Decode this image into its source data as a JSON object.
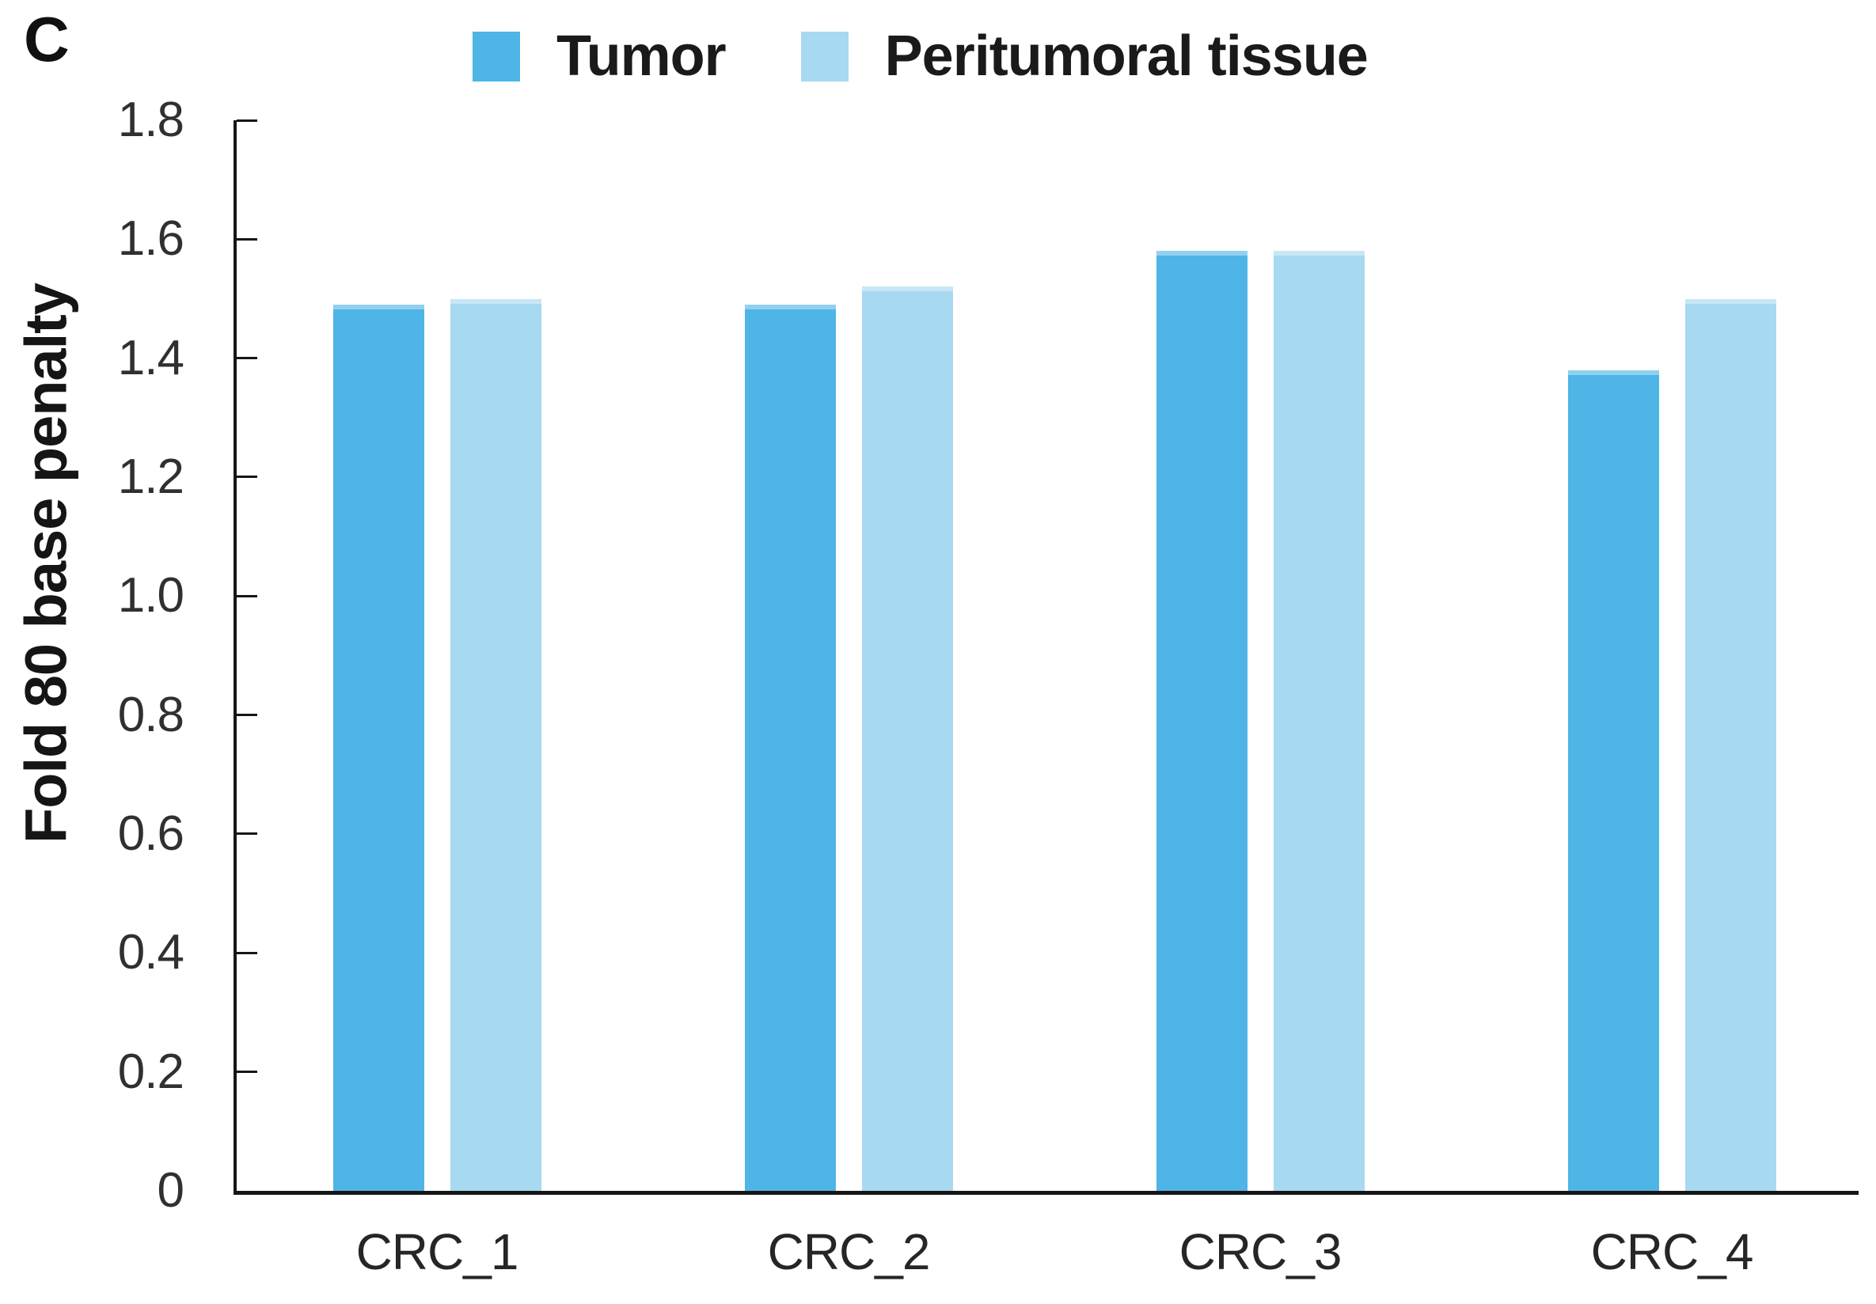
{
  "panel_label": "C",
  "colors": {
    "axis": "#161616",
    "tick_label_text": "#303030",
    "category_text": "#262626",
    "legend_text": "#1a1a1a",
    "tumor_blue": "#4FB4E6",
    "peritumoral_blue": "#A7D9F1"
  },
  "chart_data": {
    "type": "bar",
    "title": "",
    "categories": [
      "CRC_1",
      "CRC_2",
      "CRC_3",
      "CRC_4"
    ],
    "series": [
      {
        "name": "Tumor",
        "color": "#4FB4E6",
        "values": [
          1.49,
          1.49,
          1.58,
          1.38
        ]
      },
      {
        "name": "Peritumoral tissue",
        "color": "#A7D9F1",
        "values": [
          1.5,
          1.52,
          1.58,
          1.5
        ]
      }
    ],
    "xlabel": "",
    "ylabel": "Fold 80 base penalty",
    "ylim": [
      0,
      1.8
    ],
    "yticks": [
      0,
      0.2,
      0.4,
      0.6,
      0.8,
      1.0,
      1.2,
      1.4,
      1.6,
      1.8
    ],
    "ytick_labels": [
      "0",
      "0.2",
      "0.4",
      "0.6",
      "0.8",
      "1.0",
      "1.2",
      "1.4",
      "1.6",
      "1.8"
    ],
    "legend_position": "top",
    "grid": false
  }
}
